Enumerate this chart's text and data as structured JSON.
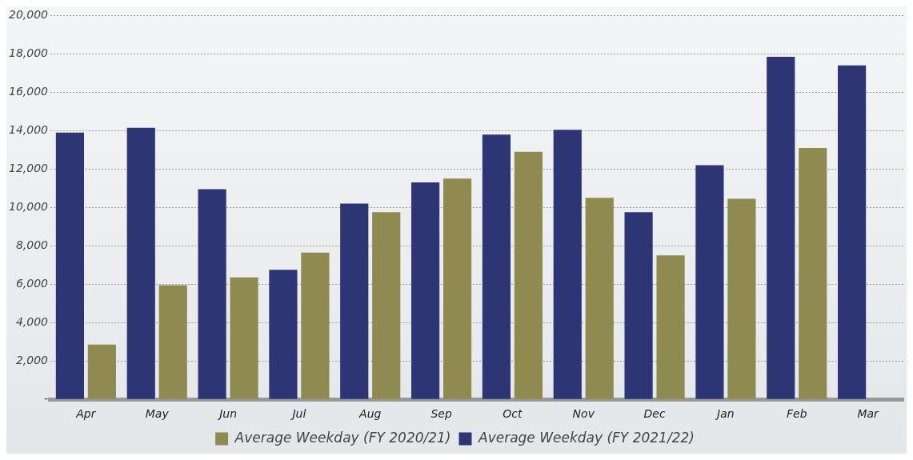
{
  "chart_data": {
    "type": "bar",
    "categories": [
      "Apr",
      "May",
      "Jun",
      "Jul",
      "Aug",
      "Sep",
      "Oct",
      "Nov",
      "Dec",
      "Jan",
      "Feb",
      "Mar"
    ],
    "series": [
      {
        "name": "Average Weekday (FY 2021/22)",
        "color": "#2e3575",
        "values": [
          13900,
          14150,
          10950,
          6750,
          10200,
          11300,
          13800,
          14050,
          9750,
          12200,
          17850,
          17400
        ]
      },
      {
        "name": "Average Weekday (FY 2020/21)",
        "color": "#8e8a50",
        "values": [
          2850,
          5950,
          6350,
          7650,
          9750,
          11500,
          12900,
          10500,
          7500,
          10450,
          13100,
          null
        ]
      }
    ],
    "ylim": [
      0,
      20000
    ],
    "yticks": [
      {
        "value": 0,
        "label": "-"
      },
      {
        "value": 2000,
        "label": "2,000"
      },
      {
        "value": 4000,
        "label": "4,000"
      },
      {
        "value": 6000,
        "label": "6,000"
      },
      {
        "value": 8000,
        "label": "8,000"
      },
      {
        "value": 10000,
        "label": "10,000"
      },
      {
        "value": 12000,
        "label": "12,000"
      },
      {
        "value": 14000,
        "label": "14,000"
      },
      {
        "value": 16000,
        "label": "16,000"
      },
      {
        "value": 18000,
        "label": "18,000"
      },
      {
        "value": 20000,
        "label": "20,000"
      }
    ],
    "grid": "y",
    "legend": "bottom"
  }
}
